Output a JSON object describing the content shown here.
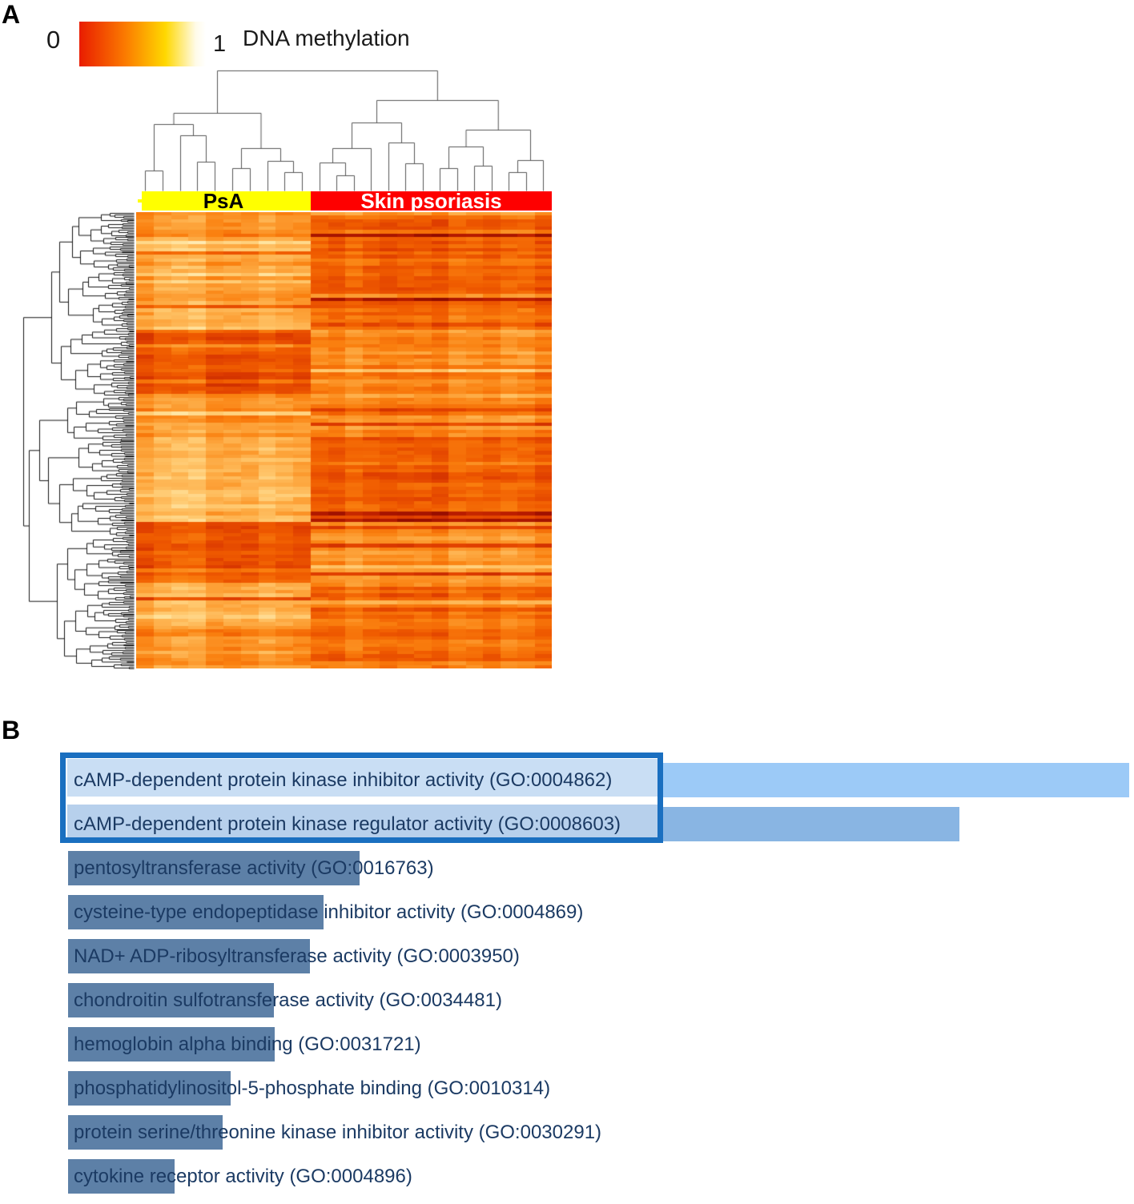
{
  "panel_a": {
    "label": "A",
    "legend": {
      "min_label": "0",
      "max_label": "1",
      "title": "DNA methylation",
      "gradient_stops": [
        "#e91c00",
        "#fb7a00",
        "#ffd800",
        "#ffffff"
      ]
    },
    "groups": [
      {
        "name": "PsA",
        "band_color": "#ffff00",
        "text_color": "#000000",
        "n_samples": 10
      },
      {
        "name": "Skin psoriasis",
        "band_color": "#fe0000",
        "text_color": "#ffffff",
        "n_samples": 14
      }
    ]
  },
  "panel_b": {
    "label": "B",
    "colors": {
      "bar_highlight_1": "#9ccaf7",
      "bar_highlight_2": "#89b5e3",
      "bar_default": "#5d80a7",
      "highlight_box_border": "#1a6fc0",
      "chip_fill_1": "#c9def4",
      "chip_fill_2": "#b7d0ec",
      "label_text": "#1b3a63"
    }
  },
  "chart_data": [
    {
      "type": "heatmap",
      "title": "DNA methylation",
      "colorscale": {
        "min": 0,
        "max": 1,
        "min_color": "red",
        "mid_color": "orange/yellow",
        "max_color": "white",
        "label": "DNA methylation"
      },
      "column_groups": [
        {
          "name": "PsA",
          "n_columns": 10
        },
        {
          "name": "Skin psoriasis",
          "n_columns": 14
        }
      ],
      "n_rows_approx": 128,
      "clustering": {
        "rows": true,
        "columns": true
      },
      "row_blocks": [
        {
          "row_fraction": 0.07,
          "psa_mean": 0.57,
          "psoriasis_mean": 0.4
        },
        {
          "row_fraction": 0.19,
          "psa_mean": 0.66,
          "psoriasis_mean": 0.4
        },
        {
          "row_fraction": 0.15,
          "psa_mean": 0.36,
          "psoriasis_mean": 0.52
        },
        {
          "row_fraction": 0.08,
          "psa_mean": 0.6,
          "psoriasis_mean": 0.5
        },
        {
          "row_fraction": 0.19,
          "psa_mean": 0.68,
          "psoriasis_mean": 0.38
        },
        {
          "row_fraction": 0.13,
          "psa_mean": 0.37,
          "psoriasis_mean": 0.55
        },
        {
          "row_fraction": 0.1,
          "psa_mean": 0.68,
          "psoriasis_mean": 0.44
        },
        {
          "row_fraction": 0.09,
          "psa_mean": 0.58,
          "psoriasis_mean": 0.44
        }
      ]
    },
    {
      "type": "bar",
      "orientation": "horizontal",
      "categories": [
        "cAMP-dependent protein kinase inhibitor activity (GO:0004862)",
        "cAMP-dependent protein kinase regulator activity (GO:0008603)",
        "pentosyltransferase activity (GO:0016763)",
        "cysteine-type endopeptidase inhibitor activity (GO:0004869)",
        "NAD+ ADP-ribosyltransferase activity (GO:0003950)",
        "chondroitin sulfotransferase activity (GO:0034481)",
        "hemoglobin alpha binding (GO:0031721)",
        "phosphatidylinositol-5-phosphate binding (GO:0010314)",
        "protein serine/threonine kinase inhibitor activity (GO:0030291)",
        "cytokine receptor activity (GO:0004896)"
      ],
      "values": [
        1.0,
        0.84,
        0.275,
        0.241,
        0.228,
        0.194,
        0.195,
        0.153,
        0.146,
        0.1
      ],
      "value_note": "relative bar length; no numeric axis shown in figure",
      "highlighted_categories": [
        "cAMP-dependent protein kinase inhibitor activity (GO:0004862)",
        "cAMP-dependent protein kinase regulator activity (GO:0008603)"
      ],
      "legend_position": "none",
      "grid": false
    }
  ]
}
